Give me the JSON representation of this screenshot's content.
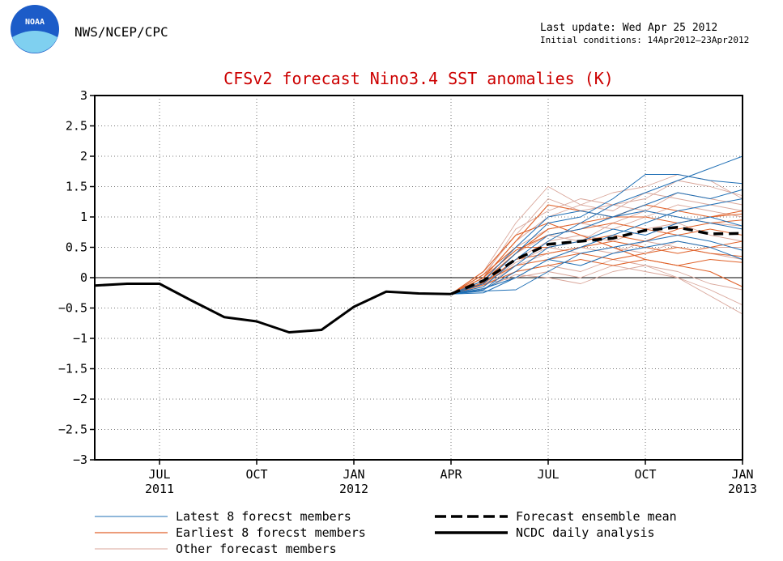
{
  "header": {
    "agency": "NWS/NCEP/CPC",
    "logo_text": "NOAA",
    "last_update": "Last update: Wed Apr 25 2012",
    "initial_conditions": "Initial conditions: 14Apr2012–23Apr2012"
  },
  "colors": {
    "title": "#cc0000",
    "latest_members": "#1f6fb5",
    "earliest_members": "#e0622a",
    "other_members": "#d9a69a",
    "ensemble_mean": "#000000",
    "analysis": "#000000",
    "logo_blue": "#1c5cc8",
    "logo_light": "#7fd0f0"
  },
  "chart_data": {
    "type": "line",
    "title": "CFSv2 forecast Nino3.4 SST anomalies (K)",
    "xlabel": "",
    "ylabel": "",
    "xlim": [
      0,
      20
    ],
    "ylim": [
      -3,
      3
    ],
    "yticks": [
      3,
      2.5,
      2,
      1.5,
      1,
      0.5,
      0,
      -0.5,
      -1,
      -1.5,
      -2,
      -2.5,
      -3
    ],
    "ytick_labels": [
      "3",
      "2.5",
      "2",
      "1.5",
      "1",
      "0.5",
      "0",
      "−0.5",
      "−1",
      "−1.5",
      "−2",
      "−2.5",
      "−3"
    ],
    "xticks": [
      {
        "pos": 2,
        "label": "JUL",
        "year": "2011"
      },
      {
        "pos": 5,
        "label": "OCT",
        "year": ""
      },
      {
        "pos": 8,
        "label": "JAN",
        "year": "2012"
      },
      {
        "pos": 11,
        "label": "APR",
        "year": ""
      },
      {
        "pos": 14,
        "label": "JUL",
        "year": ""
      },
      {
        "pos": 17,
        "label": "OCT",
        "year": ""
      },
      {
        "pos": 20,
        "label": "JAN",
        "year": "2013"
      }
    ],
    "grid": true,
    "analysis": {
      "name": "NCDC daily analysis",
      "x": [
        0,
        1,
        2,
        3,
        4,
        5,
        6,
        7,
        8,
        9,
        10,
        11
      ],
      "y": [
        -0.13,
        -0.1,
        -0.1,
        -0.38,
        -0.65,
        -0.72,
        -0.9,
        -0.86,
        -0.48,
        -0.23,
        -0.26,
        -0.27
      ]
    },
    "ensemble_mean": {
      "name": "Forecast ensemble mean",
      "x": [
        11,
        12,
        13,
        14,
        15,
        16,
        17,
        18,
        19,
        20
      ],
      "y": [
        -0.27,
        -0.05,
        0.3,
        0.55,
        0.6,
        0.65,
        0.78,
        0.83,
        0.72,
        0.73
      ]
    },
    "members": [
      {
        "group": "latest",
        "y": [
          -0.27,
          -0.2,
          0.2,
          0.6,
          0.9,
          1.2,
          1.4,
          1.6,
          1.8,
          2.0
        ]
      },
      {
        "group": "latest",
        "y": [
          -0.27,
          -0.1,
          0.4,
          0.9,
          1.0,
          1.3,
          1.7,
          1.7,
          1.6,
          1.55
        ]
      },
      {
        "group": "latest",
        "y": [
          -0.27,
          -0.15,
          0.3,
          0.7,
          0.8,
          1.0,
          1.2,
          1.4,
          1.3,
          1.45
        ]
      },
      {
        "group": "latest",
        "y": [
          -0.27,
          -0.25,
          0.0,
          0.3,
          0.5,
          0.7,
          0.9,
          1.1,
          1.2,
          1.3
        ]
      },
      {
        "group": "latest",
        "y": [
          -0.27,
          -0.2,
          0.1,
          0.5,
          0.6,
          0.8,
          0.7,
          0.9,
          1.0,
          0.85
        ]
      },
      {
        "group": "latest",
        "y": [
          -0.27,
          -0.22,
          -0.2,
          0.1,
          0.4,
          0.5,
          0.6,
          0.7,
          0.6,
          0.45
        ]
      },
      {
        "group": "latest",
        "y": [
          -0.27,
          -0.18,
          0.0,
          0.3,
          0.2,
          0.4,
          0.5,
          0.6,
          0.5,
          0.3
        ]
      },
      {
        "group": "latest",
        "y": [
          -0.27,
          -0.05,
          0.5,
          1.0,
          1.1,
          1.0,
          1.1,
          1.0,
          0.9,
          0.8
        ]
      },
      {
        "group": "earliest",
        "y": [
          -0.27,
          0.0,
          0.6,
          1.2,
          1.1,
          1.0,
          1.0,
          0.9,
          1.0,
          1.1
        ]
      },
      {
        "group": "earliest",
        "y": [
          -0.27,
          -0.05,
          0.4,
          0.8,
          0.9,
          1.0,
          1.2,
          1.1,
          1.0,
          1.05
        ]
      },
      {
        "group": "earliest",
        "y": [
          -0.27,
          0.05,
          0.5,
          0.5,
          0.6,
          0.7,
          0.6,
          0.8,
          0.9,
          0.95
        ]
      },
      {
        "group": "earliest",
        "y": [
          -0.27,
          -0.1,
          0.3,
          0.4,
          0.5,
          0.6,
          0.5,
          0.4,
          0.5,
          0.6
        ]
      },
      {
        "group": "earliest",
        "y": [
          -0.27,
          -0.08,
          0.2,
          0.3,
          0.4,
          0.3,
          0.4,
          0.5,
          0.4,
          0.35
        ]
      },
      {
        "group": "earliest",
        "y": [
          -0.27,
          0.1,
          0.7,
          0.9,
          0.7,
          0.5,
          0.3,
          0.2,
          0.1,
          -0.15
        ]
      },
      {
        "group": "earliest",
        "y": [
          -0.27,
          -0.12,
          0.1,
          0.2,
          0.3,
          0.2,
          0.3,
          0.2,
          0.3,
          0.25
        ]
      },
      {
        "group": "earliest",
        "y": [
          -0.27,
          0.0,
          0.45,
          0.7,
          0.8,
          0.9,
          0.8,
          0.7,
          0.8,
          0.7
        ]
      },
      {
        "group": "other",
        "y": [
          -0.27,
          0.1,
          0.9,
          1.5,
          1.2,
          1.4,
          1.5,
          1.7,
          1.6,
          1.3
        ]
      },
      {
        "group": "other",
        "y": [
          -0.27,
          0.05,
          0.7,
          1.3,
          1.1,
          1.2,
          1.3,
          1.6,
          1.5,
          1.35
        ]
      },
      {
        "group": "other",
        "y": [
          -0.27,
          0.0,
          0.6,
          1.0,
          1.2,
          1.1,
          1.4,
          1.3,
          1.2,
          1.1
        ]
      },
      {
        "group": "other",
        "y": [
          -0.27,
          -0.05,
          0.5,
          0.8,
          0.9,
          0.8,
          1.0,
          1.2,
          1.1,
          1.0
        ]
      },
      {
        "group": "other",
        "y": [
          -0.27,
          -0.1,
          0.3,
          0.6,
          0.7,
          0.6,
          0.8,
          0.9,
          0.7,
          0.6
        ]
      },
      {
        "group": "other",
        "y": [
          -0.27,
          -0.15,
          0.2,
          0.4,
          0.5,
          0.4,
          0.6,
          0.5,
          0.4,
          0.3
        ]
      },
      {
        "group": "other",
        "y": [
          -0.27,
          -0.2,
          0.1,
          0.2,
          0.1,
          0.3,
          0.2,
          0.1,
          -0.1,
          -0.2
        ]
      },
      {
        "group": "other",
        "y": [
          -0.27,
          -0.1,
          0.0,
          0.1,
          0.0,
          0.2,
          0.1,
          0.0,
          -0.2,
          -0.45
        ]
      },
      {
        "group": "other",
        "y": [
          -0.27,
          -0.18,
          0.05,
          0.0,
          -0.1,
          0.1,
          0.2,
          0.0,
          -0.3,
          -0.6
        ]
      },
      {
        "group": "other",
        "y": [
          -0.27,
          0.0,
          0.8,
          1.1,
          1.3,
          1.2,
          1.1,
          1.0,
          0.9,
          0.85
        ]
      },
      {
        "group": "other",
        "y": [
          -0.27,
          -0.05,
          0.4,
          0.7,
          0.6,
          0.9,
          1.1,
          1.4,
          1.3,
          1.2
        ]
      },
      {
        "group": "other",
        "y": [
          -0.27,
          -0.12,
          0.25,
          0.5,
          0.4,
          0.5,
          0.4,
          0.6,
          0.5,
          0.5
        ]
      }
    ],
    "legend": [
      {
        "key": "latest",
        "label": "Latest 8 forecst members"
      },
      {
        "key": "earliest",
        "label": "Earliest 8 forecst members"
      },
      {
        "key": "other",
        "label": "Other forecast members"
      },
      {
        "key": "ensemble_mean",
        "label": "Forecast ensemble mean"
      },
      {
        "key": "analysis",
        "label": "NCDC daily analysis"
      }
    ],
    "legend_position": "bottom"
  }
}
